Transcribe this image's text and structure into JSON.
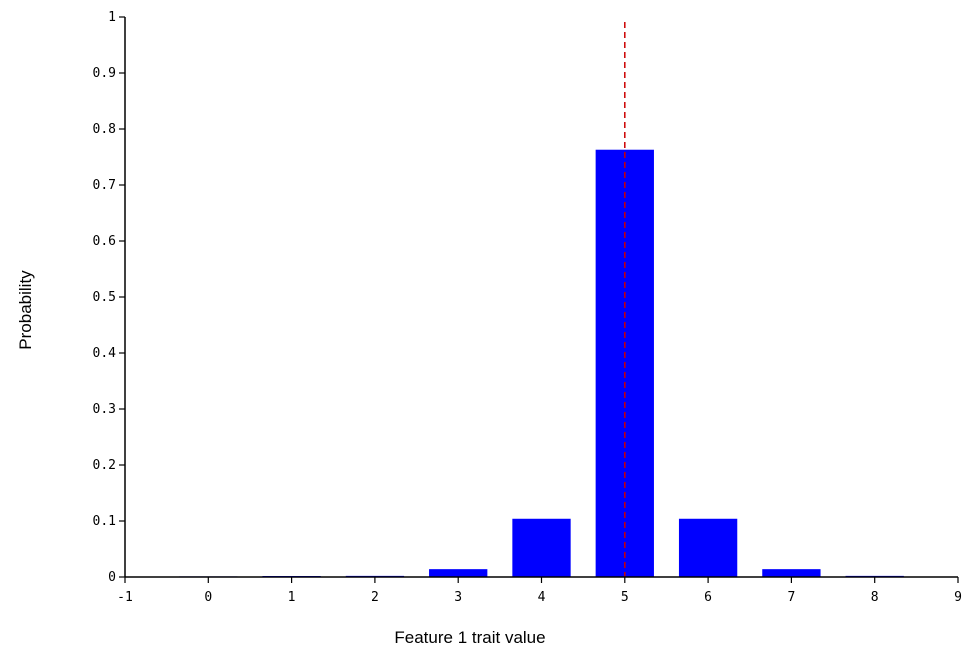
{
  "chart_data": {
    "type": "bar",
    "title": "",
    "xlabel": "Feature 1 trait value",
    "ylabel": "Probability",
    "xlim": [
      -1,
      9
    ],
    "ylim": [
      0,
      1
    ],
    "x_ticks": [
      "-1",
      "0",
      "1",
      "2",
      "3",
      "4",
      "5",
      "6",
      "7",
      "8",
      "9"
    ],
    "y_ticks": [
      "0",
      "0.1",
      "0.2",
      "0.3",
      "0.4",
      "0.5",
      "0.6",
      "0.7",
      "0.8",
      "0.9",
      "1"
    ],
    "bar_width": 0.7,
    "bar_color": "#0000ff",
    "series": [
      {
        "x": [
          0,
          1,
          2,
          3,
          4,
          5,
          6,
          7,
          8
        ],
        "values": [
          0,
          0.0003,
          0.002,
          0.014,
          0.104,
          0.763,
          0.104,
          0.014,
          0.002
        ]
      }
    ],
    "reference_line": {
      "x": 5,
      "style": "dashed",
      "color": "#cc0000"
    },
    "grid": false,
    "legend": "none"
  }
}
